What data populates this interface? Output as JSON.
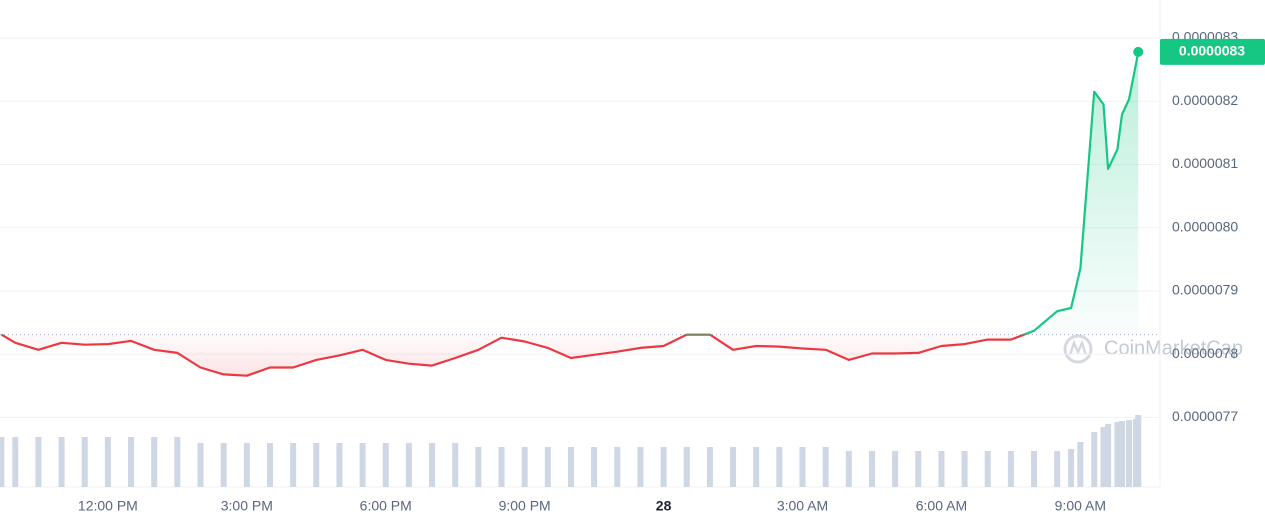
{
  "chart_data": {
    "type": "line",
    "x": [
      9.7,
      10,
      10.5,
      11,
      11.5,
      12,
      12.5,
      13,
      13.5,
      14,
      14.5,
      15,
      15.5,
      16,
      16.5,
      17,
      17.5,
      18,
      18.5,
      19,
      19.5,
      20,
      20.5,
      21,
      21.5,
      22,
      22.5,
      23,
      23.5,
      24,
      24.5,
      25,
      25.5,
      26,
      26.5,
      27,
      27.5,
      28,
      28.5,
      29,
      29.5,
      30,
      30.5,
      31,
      31.5,
      32,
      32.5,
      32.8,
      33,
      33.3,
      33.5,
      33.6,
      33.8,
      33.9,
      34.05,
      34.2,
      34.25
    ],
    "values": [
      7.831e-06,
      7.818e-06,
      7.807e-06,
      7.818e-06,
      7.815e-06,
      7.816e-06,
      7.821e-06,
      7.807e-06,
      7.802e-06,
      7.779e-06,
      7.768e-06,
      7.766e-06,
      7.779e-06,
      7.779e-06,
      7.791e-06,
      7.798e-06,
      7.807e-06,
      7.791e-06,
      7.785e-06,
      7.782e-06,
      7.794e-06,
      7.807e-06,
      7.826e-06,
      7.82e-06,
      7.81e-06,
      7.794e-06,
      7.799e-06,
      7.804e-06,
      7.81e-06,
      7.813e-06,
      7.831e-06,
      7.831e-06,
      7.807e-06,
      7.813e-06,
      7.812e-06,
      7.809e-06,
      7.807e-06,
      7.791e-06,
      7.801e-06,
      7.801e-06,
      7.802e-06,
      7.813e-06,
      7.816e-06,
      7.823e-06,
      7.823e-06,
      7.837e-06,
      7.868e-06,
      7.873e-06,
      7.936e-06,
      8.215e-06,
      8.195e-06,
      8.093e-06,
      8.124e-06,
      8.179e-06,
      8.203e-06,
      8.258e-06,
      8.278e-06
    ],
    "up_color": "#16c784",
    "down_color": "#ea3943",
    "last_value_label": "0.0000083",
    "volume": {
      "color": "#cfd6e4",
      "values": [
        50,
        50,
        50,
        50,
        50,
        50,
        50,
        50,
        50,
        44,
        44,
        44,
        44,
        44,
        44,
        44,
        44,
        44,
        44,
        44,
        44,
        40,
        40,
        40,
        40,
        40,
        40,
        40,
        40,
        40,
        40,
        40,
        40,
        40,
        40,
        40,
        40,
        36,
        36,
        36,
        36,
        36,
        36,
        36,
        36,
        36,
        36,
        38,
        45,
        55,
        60,
        63,
        65,
        66,
        67,
        68,
        72
      ]
    },
    "xlim": [
      9.67,
      34.72
    ],
    "xticks": [
      {
        "value": 12,
        "label": "12:00 PM"
      },
      {
        "value": 15,
        "label": "3:00 PM"
      },
      {
        "value": 18,
        "label": "6:00 PM"
      },
      {
        "value": 21,
        "label": "9:00 PM"
      },
      {
        "value": 24,
        "label": "28"
      },
      {
        "value": 27,
        "label": "3:00 AM"
      },
      {
        "value": 30,
        "label": "6:00 AM"
      },
      {
        "value": 33,
        "label": "9:00 AM"
      }
    ],
    "ylim": [
      7.59e-06,
      8.36e-06
    ],
    "yticks": [
      8.3e-06,
      8.2e-06,
      8.1e-06,
      {
        "value": 8e-06,
        "label": "0.0000080"
      },
      7.9e-06,
      7.8e-06,
      7.7e-06
    ],
    "grid": true,
    "watermark": "CoinMarketCap"
  }
}
